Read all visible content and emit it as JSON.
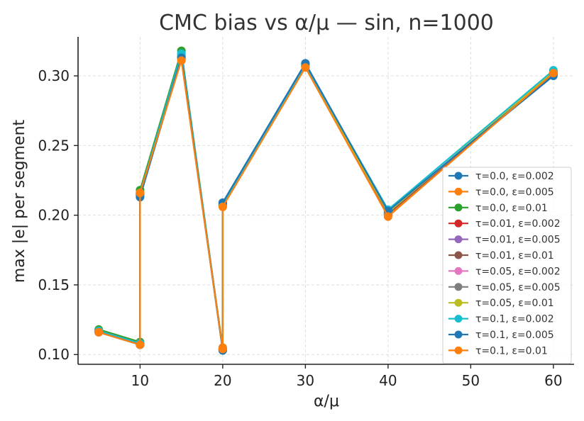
{
  "chart_data": {
    "type": "line",
    "title": "CMC bias vs α/μ — sin, n=1000",
    "xlabel": "α/μ",
    "ylabel": "max |e| per segment",
    "xlim": [
      2.5,
      62.5
    ],
    "ylim": [
      0.093,
      0.328
    ],
    "xticks": [
      10,
      20,
      30,
      40,
      50,
      60
    ],
    "yticks": [
      0.1,
      0.15,
      0.2,
      0.25,
      0.3
    ],
    "ytick_labels": [
      "0.10",
      "0.15",
      "0.20",
      "0.25",
      "0.30"
    ],
    "grid": true,
    "legend_position": "lower-right",
    "x": [
      5,
      10,
      10,
      15,
      20,
      20,
      30,
      40,
      60
    ],
    "series": [
      {
        "name": "τ=0.0, ε=0.002",
        "color": "#1f77b4",
        "values": [
          0.117,
          0.107,
          0.213,
          0.313,
          0.103,
          0.209,
          0.309,
          0.203,
          0.3
        ]
      },
      {
        "name": "τ=0.0, ε=0.005",
        "color": "#ff7f0e",
        "values": [
          0.116,
          0.108,
          0.216,
          0.312,
          0.105,
          0.207,
          0.307,
          0.2,
          0.302
        ]
      },
      {
        "name": "τ=0.0, ε=0.01",
        "color": "#2ca02c",
        "values": [
          0.118,
          0.109,
          0.218,
          0.318,
          0.104,
          0.208,
          0.308,
          0.201,
          0.303
        ]
      },
      {
        "name": "τ=0.01, ε=0.002",
        "color": "#d62728",
        "values": [
          0.117,
          0.108,
          0.215,
          0.314,
          0.104,
          0.208,
          0.307,
          0.201,
          0.302
        ]
      },
      {
        "name": "τ=0.01, ε=0.005",
        "color": "#9467bd",
        "values": [
          0.117,
          0.108,
          0.215,
          0.315,
          0.104,
          0.207,
          0.307,
          0.201,
          0.302
        ]
      },
      {
        "name": "τ=0.01, ε=0.01",
        "color": "#8c564b",
        "values": [
          0.117,
          0.108,
          0.216,
          0.316,
          0.104,
          0.207,
          0.307,
          0.201,
          0.302
        ]
      },
      {
        "name": "τ=0.05, ε=0.002",
        "color": "#e377c2",
        "values": [
          0.117,
          0.108,
          0.215,
          0.314,
          0.104,
          0.207,
          0.307,
          0.202,
          0.302
        ]
      },
      {
        "name": "τ=0.05, ε=0.005",
        "color": "#7f7f7f",
        "values": [
          0.117,
          0.108,
          0.215,
          0.314,
          0.104,
          0.207,
          0.307,
          0.202,
          0.302
        ]
      },
      {
        "name": "τ=0.05, ε=0.01",
        "color": "#bcbd22",
        "values": [
          0.117,
          0.108,
          0.216,
          0.315,
          0.104,
          0.207,
          0.307,
          0.202,
          0.303
        ]
      },
      {
        "name": "τ=0.1, ε=0.002",
        "color": "#17becf",
        "values": [
          0.117,
          0.108,
          0.216,
          0.316,
          0.104,
          0.207,
          0.308,
          0.204,
          0.304
        ]
      },
      {
        "name": "τ=0.1, ε=0.005",
        "color": "#1f77b4",
        "values": [
          0.116,
          0.107,
          0.214,
          0.313,
          0.103,
          0.209,
          0.309,
          0.203,
          0.301
        ]
      },
      {
        "name": "τ=0.1, ε=0.01",
        "color": "#ff7f0e",
        "values": [
          0.116,
          0.107,
          0.216,
          0.311,
          0.104,
          0.206,
          0.306,
          0.199,
          0.302
        ]
      }
    ]
  }
}
